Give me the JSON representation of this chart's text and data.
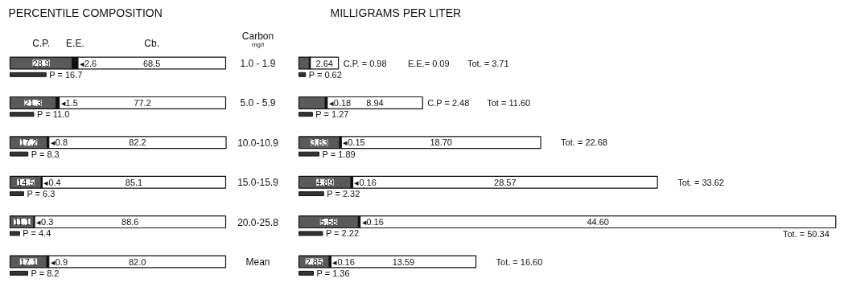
{
  "chart_data": [
    {
      "type": "bar",
      "orientation": "horizontal",
      "stacked": true,
      "title": "PERCENTILE COMPOSITION",
      "ylabel": "Carbon\nmg/l",
      "categories": [
        "1.0 - 1.9",
        "5.0 - 5.9",
        "10.0-10.9",
        "15.0-15.9",
        "20.0-25.8",
        "Mean"
      ],
      "xlim": [
        0,
        100
      ],
      "series": [
        {
          "name": "C.P.",
          "color": "#5a5a5a",
          "values": [
            28.9,
            21.3,
            17.2,
            14.5,
            11.1,
            17.1
          ],
          "value_labels": [
            "28.9",
            "21.3",
            "17.2",
            "14.5",
            "11.1",
            "17.1"
          ]
        },
        {
          "name": "E.E.",
          "color": "#111111",
          "values": [
            2.6,
            1.5,
            0.8,
            0.4,
            0.3,
            0.9
          ],
          "value_labels": [
            "◂2.6",
            "◂1.5",
            "◂0.8",
            "◂0.4",
            "◂0.3",
            "◂0.9"
          ]
        },
        {
          "name": "Cb.",
          "color": "#ffffff",
          "values": [
            68.5,
            77.2,
            82.2,
            85.1,
            88.6,
            82.0
          ],
          "value_labels": [
            "68.5",
            "77.2",
            "82.2",
            "85.1",
            "88.6",
            "82.0"
          ]
        }
      ]
    },
    {
      "type": "bar",
      "orientation": "horizontal",
      "categories": [
        "1.0 - 1.9",
        "5.0 - 5.9",
        "10.0-10.9",
        "15.0-15.9",
        "20.0-25.8",
        "Mean"
      ],
      "tick_labels": false,
      "xlim": [
        0,
        100
      ],
      "series": [
        {
          "color": "#333333",
          "values": [
            16.7,
            11.0,
            8.3,
            6.3,
            4.4,
            8.2
          ],
          "value_labels": [
            "P = 16.7",
            "P = 11.0",
            "P = 8.3",
            "P = 6.3",
            "P = 4.4",
            "P = 8.2"
          ]
        }
      ]
    },
    {
      "type": "bar",
      "orientation": "horizontal",
      "stacked": true,
      "title": "MILLIGRAMS PER LITER",
      "categories": [
        "1.0 - 1.9",
        "5.0 - 5.9",
        "10.0-10.9",
        "15.0-15.9",
        "20.0-25.8",
        "Mean"
      ],
      "tick_labels": false,
      "xlim": [
        0,
        51
      ],
      "series": [
        {
          "color": "#5a5a5a",
          "values": [
            0.98,
            2.48,
            3.83,
            4.89,
            5.58,
            2.85
          ],
          "value_labels": [
            null,
            null,
            "3.83",
            "4.89",
            "5.58",
            "2.85"
          ]
        },
        {
          "color": "#111111",
          "values": [
            0.09,
            0.18,
            0.15,
            0.16,
            0.16,
            0.16
          ],
          "value_labels": [
            null,
            "◂0.18",
            "◂0.15",
            "◂0.16",
            "◂0.16",
            "◂0.16"
          ]
        },
        {
          "color": "#ffffff",
          "values": [
            2.64,
            8.94,
            18.7,
            28.57,
            44.6,
            13.59
          ],
          "value_labels": [
            "2.64",
            "8.94",
            "18.70",
            "28.57",
            "44.60",
            "13.59"
          ]
        }
      ],
      "totals": [
        null,
        null,
        "Tot. = 22.68",
        "Tot. = 33.62",
        "Tot. = 50.34",
        "Tot. = 16.60"
      ],
      "annotations": [
        {
          "text": "C.P. = 0.98",
          "x": 3.71,
          "y": "1.0 - 1.9"
        },
        "E.E.= 0.09",
        "Tot. = 3.71",
        {
          "text": "C.P = 2.48",
          "x": 11.6,
          "y": "5.0 - 5.9"
        },
        "Tot = 11.60"
      ]
    },
    {
      "type": "bar",
      "orientation": "horizontal",
      "categories": [
        "1.0 - 1.9",
        "5.0 - 5.9",
        "10.0-10.9",
        "15.0-15.9",
        "20.0-25.8",
        "Mean"
      ],
      "tick_labels": false,
      "xlim": [
        0,
        51
      ],
      "series": [
        {
          "color": "#333333",
          "values": [
            0.62,
            1.27,
            1.89,
            2.32,
            2.22,
            1.36
          ],
          "value_labels": [
            "P = 0.62",
            "P = 1.27",
            "P = 1.89",
            "P = 2.32",
            "P = 2.22",
            "P = 1.36"
          ]
        }
      ]
    }
  ]
}
